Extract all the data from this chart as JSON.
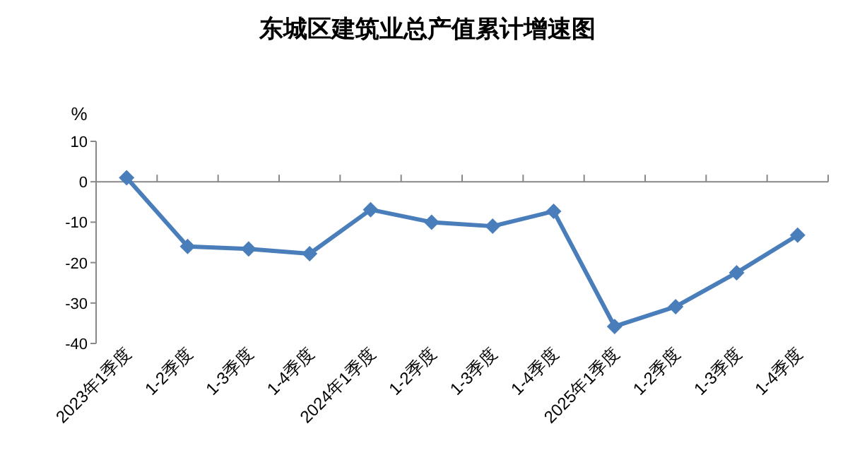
{
  "chart_data": {
    "type": "line",
    "title": "东城区建筑业总产值累计增速图",
    "ylabel": "%",
    "categories": [
      "2023年1季度",
      "1-2季度",
      "1-3季度",
      "1-4季度",
      "2024年1季度",
      "1-2季度",
      "1-3季度",
      "1-4季度",
      "2025年1季度",
      "1-2季度",
      "1-3季度",
      "1-4季度"
    ],
    "series": [
      {
        "color": "#4a7ebb",
        "values": [
          1.0,
          -16.0,
          -16.6,
          -17.8,
          -6.9,
          -10.0,
          -11.0,
          -7.3,
          -35.8,
          -30.9,
          -22.5,
          -13.2
        ]
      }
    ],
    "ylim": [
      -40,
      10
    ],
    "yticks": [
      -40,
      -30,
      -20,
      -10,
      0,
      10
    ],
    "marker": "diamond",
    "line_style": "solid"
  }
}
